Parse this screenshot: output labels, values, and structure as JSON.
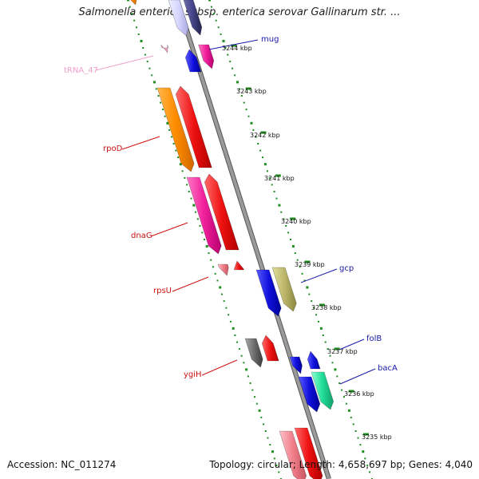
{
  "title": "Salmonella enterica subsp. enterica serovar Gallinarum str. ...",
  "footer": {
    "accession": "Accession: NC_011274",
    "topology": "Topology: circular; Length: 4,658,697 bp; Genes: 4,040"
  },
  "ticks": [
    {
      "label": "3244 kbp"
    },
    {
      "label": "3243 kbp"
    },
    {
      "label": "3242 kbp"
    },
    {
      "label": "3241 kbp"
    },
    {
      "label": "3240 kbp"
    },
    {
      "label": "3239 kbp"
    },
    {
      "label": "3238 kbp"
    },
    {
      "label": "3237 kbp"
    },
    {
      "label": "3236 kbp"
    },
    {
      "label": "3235 kbp"
    }
  ],
  "gene_labels": [
    {
      "name": "mug",
      "color": "#1a1aa6"
    },
    {
      "name": "tRNA_47",
      "color": "#f2a0c8"
    },
    {
      "name": "rpoD",
      "color": "#cc1111"
    },
    {
      "name": "dnaG",
      "color": "#cc1111"
    },
    {
      "name": "rpsU",
      "color": "#cc1111"
    },
    {
      "name": "gcp",
      "color": "#1a1aa6"
    },
    {
      "name": "folB",
      "color": "#1a1aa6"
    },
    {
      "name": "bacA",
      "color": "#1a1aa6"
    },
    {
      "name": "ygiH",
      "color": "#cc1111"
    }
  ],
  "colors": {
    "backbone": "#8a8a8a",
    "dots": "#1e8c1e",
    "orange": "#ff8c00",
    "red": "#ee1111",
    "pink": "#f0209a",
    "light_pink": "#f07f8a",
    "blue": "#1111dd",
    "olive": "#bdb76b",
    "gray": "#6e6e6e",
    "teal": "#22dd99",
    "periwinkle": "#8080e0"
  }
}
